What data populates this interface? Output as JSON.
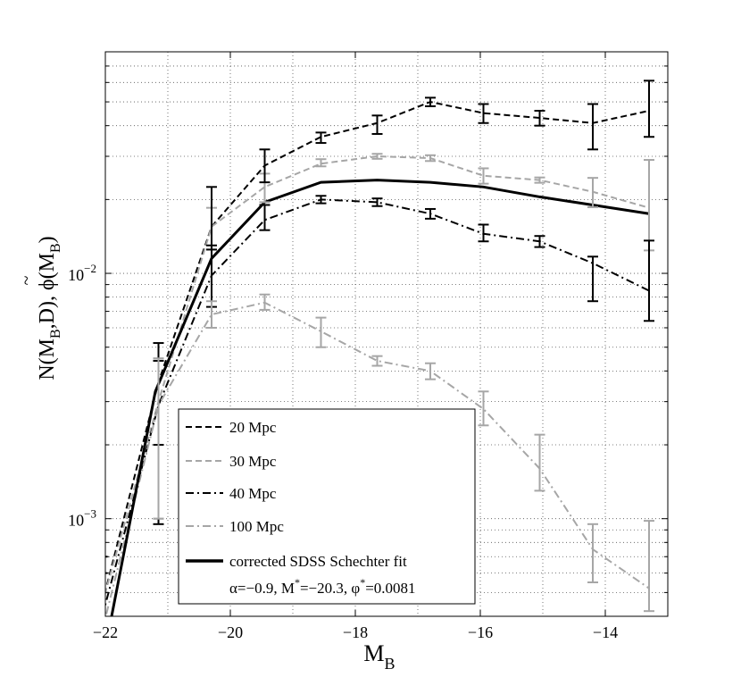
{
  "chart_data": {
    "type": "line",
    "title": "",
    "xlabel": "M",
    "xlabel_sub": "B",
    "ylabel": "N(M_B,D), φ̃(M_B)",
    "xlim": [
      -22,
      -13
    ],
    "ylim": [
      0.0004,
      0.08
    ],
    "yscale": "log",
    "grid": true,
    "x_ticks": [
      -22,
      -20,
      -18,
      -16,
      -14
    ],
    "x_tick_labels": [
      "−22",
      "−20",
      "−18",
      "−16",
      "−14"
    ],
    "y_ticks": [
      0.001,
      0.01
    ],
    "y_tick_labels": [
      {
        "base": "10",
        "exp": "−3"
      },
      {
        "base": "10",
        "exp": "−2"
      }
    ],
    "x": [
      -22.05,
      -21.15,
      -20.3,
      -19.45,
      -18.55,
      -17.65,
      -16.8,
      -15.95,
      -15.05,
      -14.2,
      -13.3
    ],
    "series": [
      {
        "name": "20 Mpc",
        "color": "#000000",
        "dash": "7,4",
        "x": [
          -22.05,
          -21.15,
          -20.3,
          -19.45,
          -18.55,
          -17.65,
          -16.8,
          -15.95,
          -15.05,
          -14.2,
          -13.3
        ],
        "values": [
          0.00045,
          0.0036,
          0.0155,
          0.0275,
          0.036,
          0.041,
          0.05,
          0.045,
          0.043,
          0.041,
          0.046
        ],
        "err_low": [
          0.00025,
          0.002,
          0.0125,
          0.0235,
          0.034,
          0.037,
          0.048,
          0.041,
          0.04,
          0.032,
          0.036
        ],
        "err_high": [
          0.0007,
          0.0052,
          0.0225,
          0.032,
          0.0375,
          0.044,
          0.052,
          0.049,
          0.046,
          0.049,
          0.061
        ]
      },
      {
        "name": "30 Mpc",
        "color": "#a6a6a6",
        "dash": "7,4",
        "x": [
          -22.05,
          -21.15,
          -20.3,
          -19.45,
          -18.55,
          -17.65,
          -16.8,
          -15.95,
          -15.05,
          -14.2,
          -13.3
        ],
        "values": [
          0.00045,
          0.003,
          0.0155,
          0.0225,
          0.028,
          0.03,
          0.0295,
          0.025,
          0.024,
          0.0215,
          0.0185
        ],
        "err_low": null,
        "err_high": null
      },
      {
        "name": "40 Mpc",
        "color": "#000000",
        "dash": "9,4,2,4",
        "x": [
          -22.05,
          -21.15,
          -20.3,
          -19.45,
          -18.55,
          -17.65,
          -16.8,
          -15.95,
          -15.05,
          -14.2,
          -13.3
        ],
        "values": [
          0.0004,
          0.0029,
          0.0098,
          0.0165,
          0.02,
          0.0195,
          0.0175,
          0.0145,
          0.0135,
          0.011,
          0.0085
        ],
        "err_low": [
          0.0002,
          0.00095,
          0.0073,
          0.015,
          0.0193,
          0.0188,
          0.0167,
          0.0135,
          0.0128,
          0.0077,
          0.0064
        ],
        "err_high": [
          0.0006,
          0.0044,
          0.013,
          0.019,
          0.0207,
          0.0202,
          0.0183,
          0.0158,
          0.0142,
          0.0117,
          0.0136
        ]
      },
      {
        "name": "100 Mpc",
        "color": "#a6a6a6",
        "dash": "9,4,2,4",
        "x": [
          -22.05,
          -21.15,
          -20.3,
          -19.45,
          -18.55,
          -17.65,
          -16.8,
          -15.95,
          -15.05,
          -14.2,
          -13.3
        ],
        "values": [
          0.00035,
          0.0029,
          0.0068,
          0.0076,
          0.0058,
          0.0044,
          0.004,
          0.0028,
          0.0016,
          0.00075,
          0.00052
        ],
        "err_low": [
          0.0002,
          0.001,
          0.006,
          0.0071,
          0.005,
          0.0042,
          0.0037,
          0.0024,
          0.0013,
          0.00055,
          0.00042
        ],
        "err_high": [
          0.0005,
          0.0045,
          0.0077,
          0.0082,
          0.0066,
          0.0046,
          0.0043,
          0.0033,
          0.0022,
          0.00095,
          0.00098
        ]
      },
      {
        "name": "corrected SDSS Schechter fit",
        "color": "#000000",
        "dash": "",
        "thick": true,
        "x": [
          -21.9,
          -21.2,
          -20.3,
          -19.45,
          -18.55,
          -17.65,
          -16.8,
          -15.95,
          -15.05,
          -14.2,
          -13.3
        ],
        "values": [
          0.0004,
          0.0033,
          0.0115,
          0.0195,
          0.0235,
          0.024,
          0.0235,
          0.0225,
          0.0205,
          0.019,
          0.0175
        ],
        "err_low": null,
        "err_high": null
      }
    ],
    "gray_error_bars": {
      "x": [
        -21.15,
        -20.3,
        -19.45,
        -18.55,
        -17.65,
        -16.8,
        -15.95,
        -15.05,
        -14.2,
        -13.3
      ],
      "low": [
        0.001,
        0.0125,
        0.0195,
        0.0273,
        0.0293,
        0.0287,
        0.0232,
        0.0234,
        0.0186,
        0.0124
      ],
      "high": [
        0.0045,
        0.0185,
        0.0255,
        0.0292,
        0.0307,
        0.0303,
        0.0268,
        0.0246,
        0.0245,
        0.029
      ]
    },
    "legend": {
      "placement": "bottom-left",
      "entries": [
        "20 Mpc",
        "30 Mpc",
        "40 Mpc",
        "100 Mpc",
        "corrected SDSS Schechter fit"
      ],
      "fit_params_prefix": "α=−0.9, M",
      "fit_params_mid": "=−20.3, φ",
      "fit_params_suffix": "=0.0081",
      "fit_params_star": "*"
    }
  }
}
